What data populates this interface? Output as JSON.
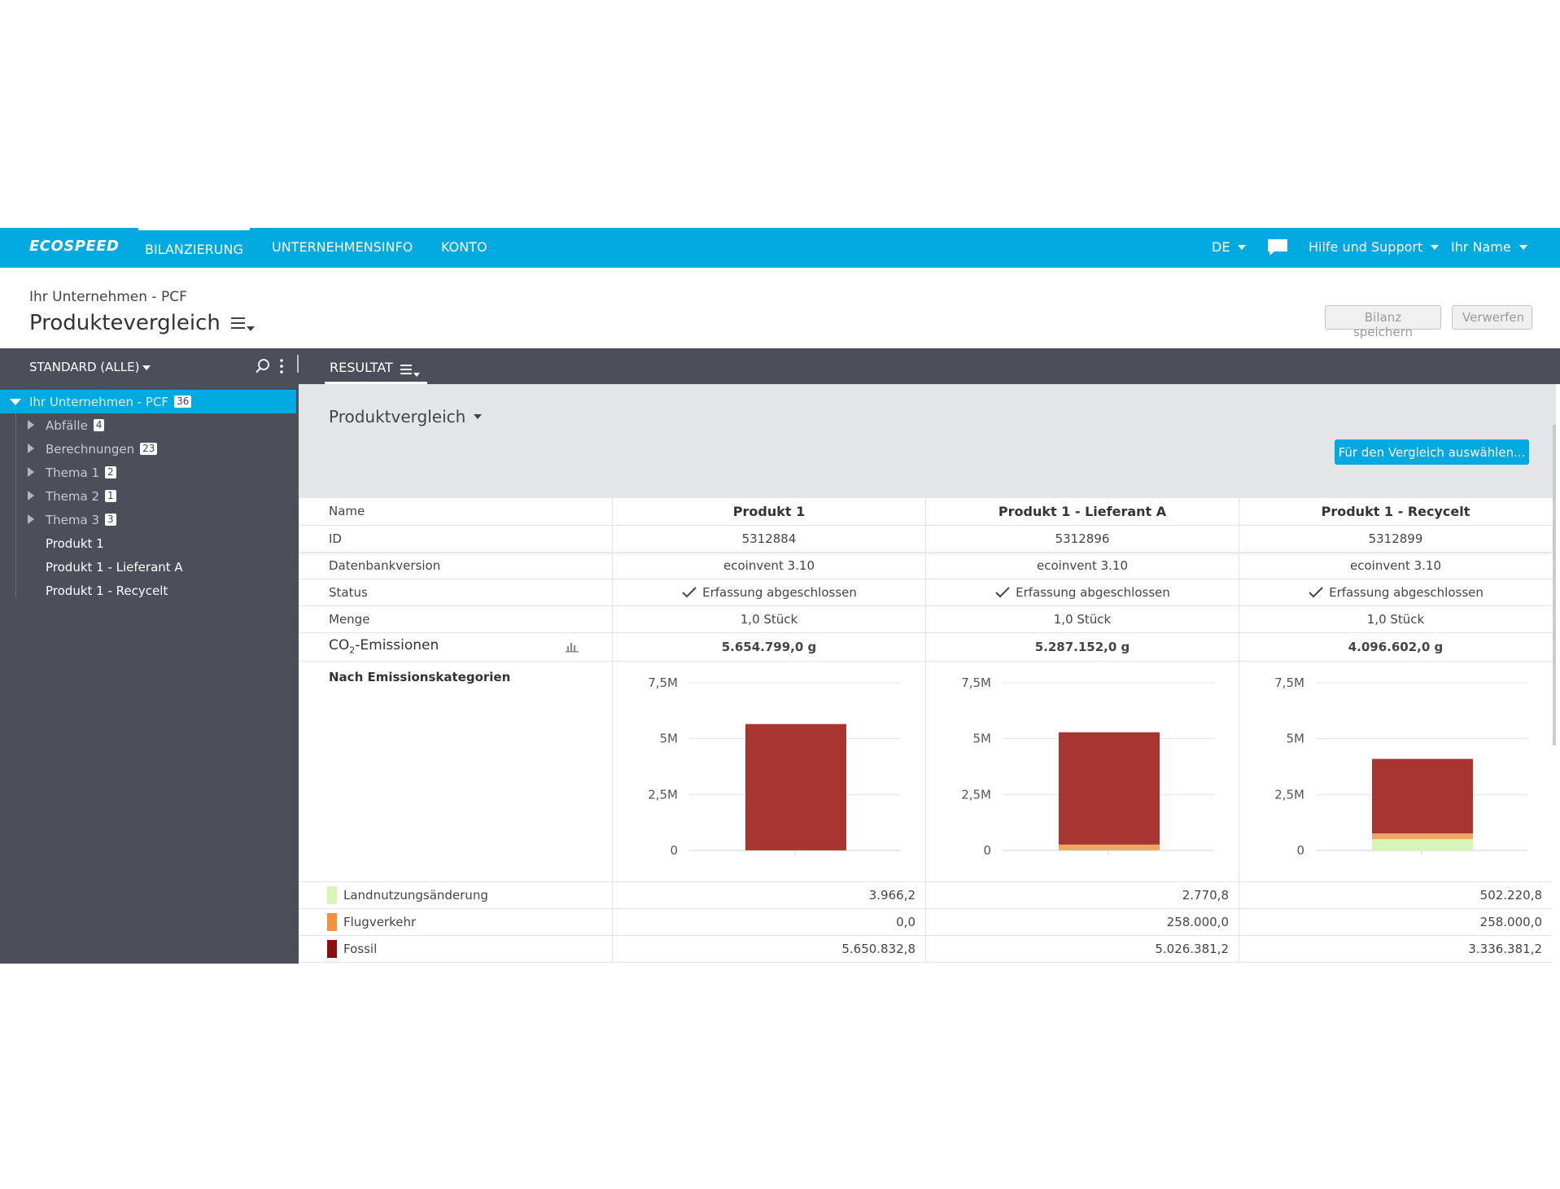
{
  "nav": {
    "brand": "ECOSPEED",
    "items": [
      {
        "label": "BILANZIERUNG",
        "active": true
      },
      {
        "label": "UNTERNEHMENSINFO",
        "active": false
      },
      {
        "label": "KONTO",
        "active": false
      }
    ],
    "language": "DE",
    "help": "Hilfe und Support",
    "user": "Ihr Name",
    "chat_icon": "speech-bubble-icon"
  },
  "header": {
    "breadcrumb": "Ihr Unternehmen - PCF",
    "title": "Produktevergleich",
    "save_button": "Bilanz speichern",
    "discard_button": "Verwerfen"
  },
  "sidebar": {
    "filter": "STANDARD (ALLE)",
    "tree": [
      {
        "label": "Ihr Unternehmen - PCF",
        "count": "36",
        "expanded": true,
        "selected": true,
        "level": 0
      },
      {
        "label": "Abfälle",
        "count": "4",
        "level": 1
      },
      {
        "label": "Berechnungen",
        "count": "23",
        "level": 1
      },
      {
        "label": "Thema 1",
        "count": "2",
        "level": 1
      },
      {
        "label": "Thema 2",
        "count": "1",
        "level": 1
      },
      {
        "label": "Thema 3",
        "count": "3",
        "level": 1
      },
      {
        "label": "Produkt 1",
        "level": 1,
        "leaf": true
      },
      {
        "label": "Produkt 1 - Lieferant A",
        "level": 1,
        "leaf": true
      },
      {
        "label": "Produkt 1 - Recycelt",
        "level": 1,
        "leaf": true
      }
    ]
  },
  "tab": {
    "label": "RESULTAT"
  },
  "section": {
    "title": "Produktvergleich",
    "select_button": "Für den Vergleich auswählen..."
  },
  "table": {
    "labels": {
      "name": "Name",
      "id": "ID",
      "db": "Datenbankversion",
      "status": "Status",
      "amount": "Menge",
      "co2_prefix": "CO",
      "co2_sub": "2",
      "co2_suffix": "-Emissionen",
      "by_category": "Nach Emissionskategorien"
    },
    "products": [
      {
        "name": "Produkt 1",
        "id": "5312884",
        "db": "ecoinvent 3.10",
        "status": "Erfassung abgeschlossen",
        "amount": "1,0 Stück",
        "co2": "5.654.799,0 g",
        "landuse": "3.966,2",
        "flight": "0,0",
        "fossil": "5.650.832,8"
      },
      {
        "name": "Produkt 1 - Lieferant A",
        "id": "5312896",
        "db": "ecoinvent 3.10",
        "status": "Erfassung abgeschlossen",
        "amount": "1,0 Stück",
        "co2": "5.287.152,0 g",
        "landuse": "2.770,8",
        "flight": "258.000,0",
        "fossil": "5.026.381,2"
      },
      {
        "name": "Produkt 1 - Recycelt",
        "id": "5312899",
        "db": "ecoinvent 3.10",
        "status": "Erfassung abgeschlossen",
        "amount": "1,0 Stück",
        "co2": "4.096.602,0 g",
        "landuse": "502.220,8",
        "flight": "258.000,0",
        "fossil": "3.336.381,2"
      }
    ],
    "legend": [
      {
        "label": "Landnutzungsänderung",
        "color": "#d6f5b8"
      },
      {
        "label": "Flugverkehr",
        "color": "#f2923d"
      },
      {
        "label": "Fossil",
        "color": "#8b1010"
      }
    ]
  },
  "chart_data": [
    {
      "type": "bar",
      "stacked": true,
      "categories": [
        "Produkt 1"
      ],
      "yticks": [
        "0",
        "2,5M",
        "5M",
        "7,5M"
      ],
      "ylim": [
        0,
        7500000
      ],
      "series": [
        {
          "name": "Landnutzungsänderung",
          "values": [
            3966.2
          ],
          "color": "#d6f5b8"
        },
        {
          "name": "Flugverkehr",
          "values": [
            0.0
          ],
          "color": "#f0a766"
        },
        {
          "name": "Fossil",
          "values": [
            5650832.8
          ],
          "color": "#a93532"
        }
      ]
    },
    {
      "type": "bar",
      "stacked": true,
      "categories": [
        "Produkt 1 - Lieferant A"
      ],
      "yticks": [
        "0",
        "2,5M",
        "5M",
        "7,5M"
      ],
      "ylim": [
        0,
        7500000
      ],
      "series": [
        {
          "name": "Landnutzungsänderung",
          "values": [
            2770.8
          ],
          "color": "#d6f5b8"
        },
        {
          "name": "Flugverkehr",
          "values": [
            258000.0
          ],
          "color": "#f0a766"
        },
        {
          "name": "Fossil",
          "values": [
            5026381.2
          ],
          "color": "#a93532"
        }
      ]
    },
    {
      "type": "bar",
      "stacked": true,
      "categories": [
        "Produkt 1 - Recycelt"
      ],
      "yticks": [
        "0",
        "2,5M",
        "5M",
        "7,5M"
      ],
      "ylim": [
        0,
        7500000
      ],
      "series": [
        {
          "name": "Landnutzungsänderung",
          "values": [
            502220.8
          ],
          "color": "#d6f5b8"
        },
        {
          "name": "Flugverkehr",
          "values": [
            258000.0
          ],
          "color": "#f0a766"
        },
        {
          "name": "Fossil",
          "values": [
            3336381.2
          ],
          "color": "#a93532"
        }
      ]
    }
  ]
}
